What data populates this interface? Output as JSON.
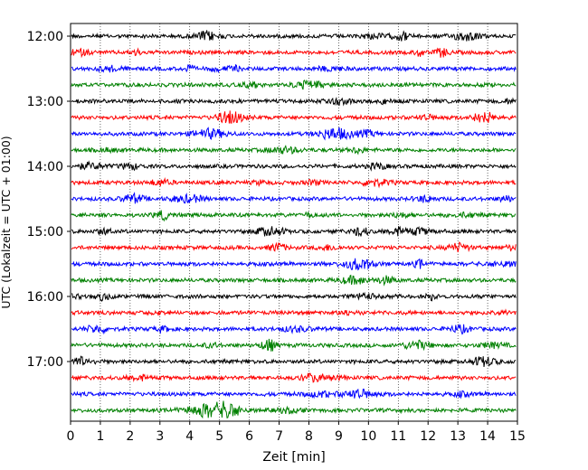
{
  "chart_data": {
    "type": "line",
    "title": "",
    "xlabel": "Zeit  [min]",
    "ylabel": "UTC (Lokalzeit = UTC + 01:00)",
    "xlim": [
      0,
      15
    ],
    "x_ticks": [
      "0",
      "1",
      "2",
      "3",
      "4",
      "5",
      "6",
      "7",
      "8",
      "9",
      "10",
      "11",
      "12",
      "13",
      "14",
      "15"
    ],
    "y_ticks": [
      "12:00",
      "13:00",
      "14:00",
      "15:00",
      "16:00",
      "17:00"
    ],
    "grid": "vertical dotted",
    "trace_colors": [
      "#000000",
      "#ff0000",
      "#0000ff",
      "#008000"
    ],
    "series": [
      {
        "start": "12:00",
        "color": "#000000"
      },
      {
        "start": "12:15",
        "color": "#ff0000"
      },
      {
        "start": "12:30",
        "color": "#0000ff"
      },
      {
        "start": "12:45",
        "color": "#008000"
      },
      {
        "start": "13:00",
        "color": "#000000"
      },
      {
        "start": "13:15",
        "color": "#ff0000"
      },
      {
        "start": "13:30",
        "color": "#0000ff"
      },
      {
        "start": "13:45",
        "color": "#008000"
      },
      {
        "start": "14:00",
        "color": "#000000"
      },
      {
        "start": "14:15",
        "color": "#ff0000"
      },
      {
        "start": "14:30",
        "color": "#0000ff"
      },
      {
        "start": "14:45",
        "color": "#008000"
      },
      {
        "start": "15:00",
        "color": "#000000"
      },
      {
        "start": "15:15",
        "color": "#ff0000"
      },
      {
        "start": "15:30",
        "color": "#0000ff"
      },
      {
        "start": "15:45",
        "color": "#008000"
      },
      {
        "start": "16:00",
        "color": "#000000"
      },
      {
        "start": "16:15",
        "color": "#ff0000"
      },
      {
        "start": "16:30",
        "color": "#0000ff"
      },
      {
        "start": "16:45",
        "color": "#008000"
      },
      {
        "start": "17:00",
        "color": "#000000"
      },
      {
        "start": "17:15",
        "color": "#ff0000"
      },
      {
        "start": "17:30",
        "color": "#0000ff"
      },
      {
        "start": "17:45",
        "color": "#008000"
      }
    ]
  }
}
